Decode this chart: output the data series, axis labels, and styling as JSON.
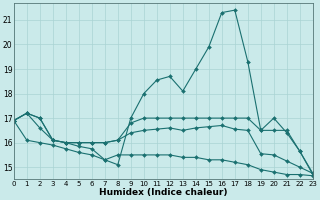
{
  "xlabel": "Humidex (Indice chaleur)",
  "bg_color": "#caeaea",
  "grid_color": "#aad4d4",
  "line_color": "#1a7070",
  "xlim": [
    0,
    23
  ],
  "ylim": [
    14.5,
    21.7
  ],
  "yticks": [
    15,
    16,
    17,
    18,
    19,
    20,
    21
  ],
  "xticks": [
    0,
    1,
    2,
    3,
    4,
    5,
    6,
    7,
    8,
    9,
    10,
    11,
    12,
    13,
    14,
    15,
    16,
    17,
    18,
    19,
    20,
    21,
    22,
    23
  ],
  "lines": [
    {
      "x": [
        0,
        1,
        2,
        3,
        4,
        5,
        6,
        7,
        8,
        9,
        10,
        11,
        12,
        13,
        14,
        15,
        16,
        17,
        18,
        19,
        20,
        21,
        22,
        23
      ],
      "y": [
        16.9,
        17.2,
        17.0,
        16.1,
        16.0,
        15.85,
        15.75,
        15.3,
        15.1,
        17.0,
        18.0,
        18.55,
        18.7,
        18.1,
        19.0,
        19.9,
        21.3,
        21.4,
        19.3,
        16.5,
        17.0,
        16.4,
        15.65,
        14.7
      ]
    },
    {
      "x": [
        0,
        1,
        2,
        3,
        4,
        5,
        6,
        7,
        8,
        9,
        10,
        11,
        12,
        13,
        14,
        15,
        16,
        17,
        18,
        19,
        20,
        21,
        22,
        23
      ],
      "y": [
        16.9,
        17.2,
        17.0,
        16.1,
        16.0,
        16.0,
        16.0,
        16.0,
        16.1,
        16.8,
        17.0,
        17.0,
        17.0,
        17.0,
        17.0,
        17.0,
        17.0,
        17.0,
        17.0,
        16.5,
        16.5,
        16.5,
        15.65,
        14.75
      ]
    },
    {
      "x": [
        0,
        1,
        2,
        3,
        4,
        5,
        6,
        7,
        8,
        9,
        10,
        11,
        12,
        13,
        14,
        15,
        16,
        17,
        18,
        19,
        20,
        21,
        22,
        23
      ],
      "y": [
        16.9,
        17.2,
        16.6,
        16.1,
        16.0,
        16.0,
        16.0,
        16.0,
        16.1,
        16.4,
        16.5,
        16.55,
        16.6,
        16.5,
        16.6,
        16.65,
        16.7,
        16.55,
        16.5,
        15.55,
        15.5,
        15.25,
        15.0,
        14.75
      ]
    },
    {
      "x": [
        0,
        1,
        2,
        3,
        4,
        5,
        6,
        7,
        8,
        9,
        10,
        11,
        12,
        13,
        14,
        15,
        16,
        17,
        18,
        19,
        20,
        21,
        22,
        23
      ],
      "y": [
        16.9,
        16.1,
        16.0,
        15.9,
        15.75,
        15.6,
        15.5,
        15.3,
        15.5,
        15.5,
        15.5,
        15.5,
        15.5,
        15.4,
        15.4,
        15.3,
        15.3,
        15.2,
        15.1,
        14.9,
        14.8,
        14.7,
        14.7,
        14.65
      ]
    }
  ]
}
